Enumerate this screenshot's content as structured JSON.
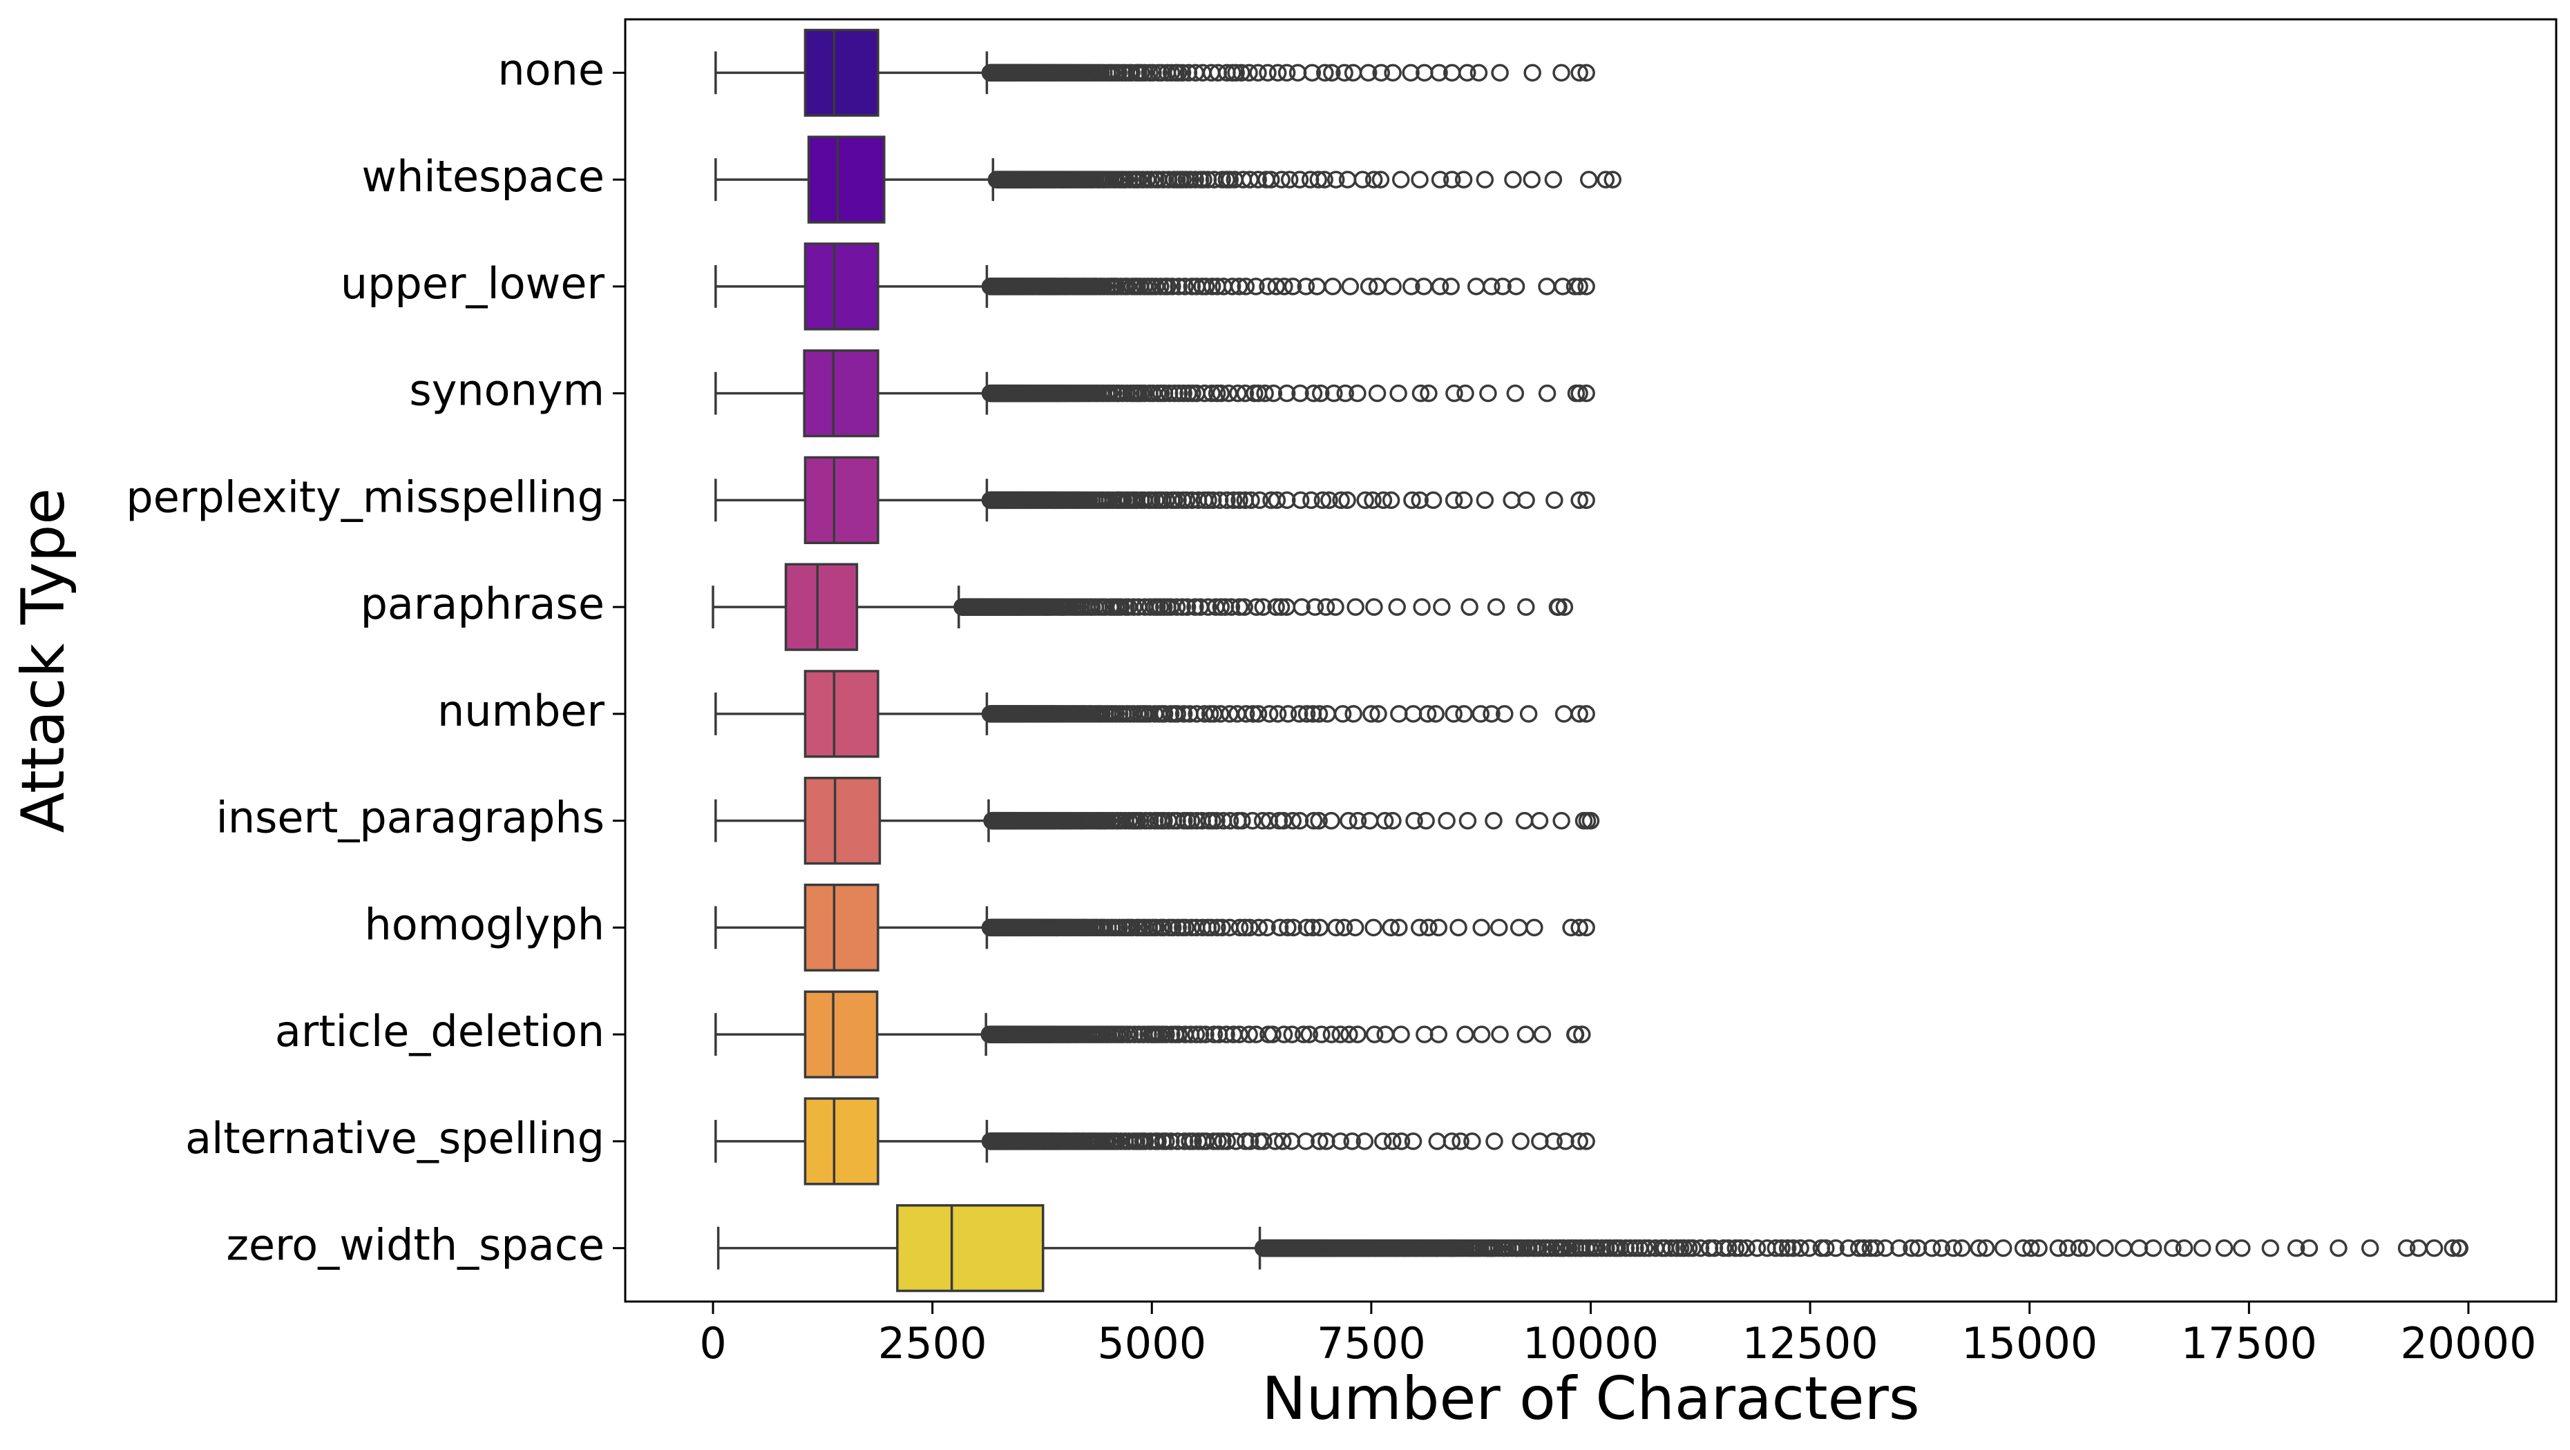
{
  "chart_data": {
    "type": "boxplot",
    "orientation": "horizontal",
    "xlabel": "Number of Characters",
    "ylabel": "Attack Type",
    "xlim": [
      -1000,
      21000
    ],
    "xticks": [
      0,
      2500,
      5000,
      7500,
      10000,
      12500,
      15000,
      17500,
      20000
    ],
    "xtick_labels": [
      "0",
      "2500",
      "5000",
      "7500",
      "10000",
      "12500",
      "15000",
      "17500",
      "20000"
    ],
    "grid": false,
    "legend": "none",
    "categories": [
      {
        "label": "none",
        "whisker_low": 30,
        "q1": 1050,
        "median": 1380,
        "q3": 1880,
        "whisker_high": 3120,
        "outlier_max": 9950,
        "color": "#3b0f8f"
      },
      {
        "label": "whitespace",
        "whisker_low": 30,
        "q1": 1090,
        "median": 1420,
        "q3": 1950,
        "whisker_high": 3190,
        "outlier_max": 10250,
        "color": "#5b069f"
      },
      {
        "label": "upper_lower",
        "whisker_low": 30,
        "q1": 1050,
        "median": 1380,
        "q3": 1880,
        "whisker_high": 3120,
        "outlier_max": 9950,
        "color": "#7213a2"
      },
      {
        "label": "synonym",
        "whisker_low": 30,
        "q1": 1040,
        "median": 1370,
        "q3": 1880,
        "whisker_high": 3120,
        "outlier_max": 9950,
        "color": "#8a219c"
      },
      {
        "label": "perplexity_misspelling",
        "whisker_low": 30,
        "q1": 1050,
        "median": 1380,
        "q3": 1880,
        "whisker_high": 3120,
        "outlier_max": 9950,
        "color": "#a02e92"
      },
      {
        "label": "paraphrase",
        "whisker_low": 0,
        "q1": 830,
        "median": 1190,
        "q3": 1640,
        "whisker_high": 2800,
        "outlier_max": 9700,
        "color": "#b63f84"
      },
      {
        "label": "number",
        "whisker_low": 30,
        "q1": 1050,
        "median": 1380,
        "q3": 1880,
        "whisker_high": 3120,
        "outlier_max": 9950,
        "color": "#c85576"
      },
      {
        "label": "insert_paragraphs",
        "whisker_low": 30,
        "q1": 1050,
        "median": 1390,
        "q3": 1900,
        "whisker_high": 3140,
        "outlier_max": 10000,
        "color": "#d66d66"
      },
      {
        "label": "homoglyph",
        "whisker_low": 30,
        "q1": 1050,
        "median": 1380,
        "q3": 1880,
        "whisker_high": 3120,
        "outlier_max": 9950,
        "color": "#e28457"
      },
      {
        "label": "article_deletion",
        "whisker_low": 30,
        "q1": 1050,
        "median": 1370,
        "q3": 1870,
        "whisker_high": 3110,
        "outlier_max": 9900,
        "color": "#eb9a48"
      },
      {
        "label": "alternative_spelling",
        "whisker_low": 30,
        "q1": 1050,
        "median": 1380,
        "q3": 1880,
        "whisker_high": 3120,
        "outlier_max": 9950,
        "color": "#efb43c"
      },
      {
        "label": "zero_width_space",
        "whisker_low": 60,
        "q1": 2100,
        "median": 2720,
        "q3": 3760,
        "whisker_high": 6230,
        "outlier_max": 19900,
        "color": "#e5cd3b"
      }
    ]
  }
}
